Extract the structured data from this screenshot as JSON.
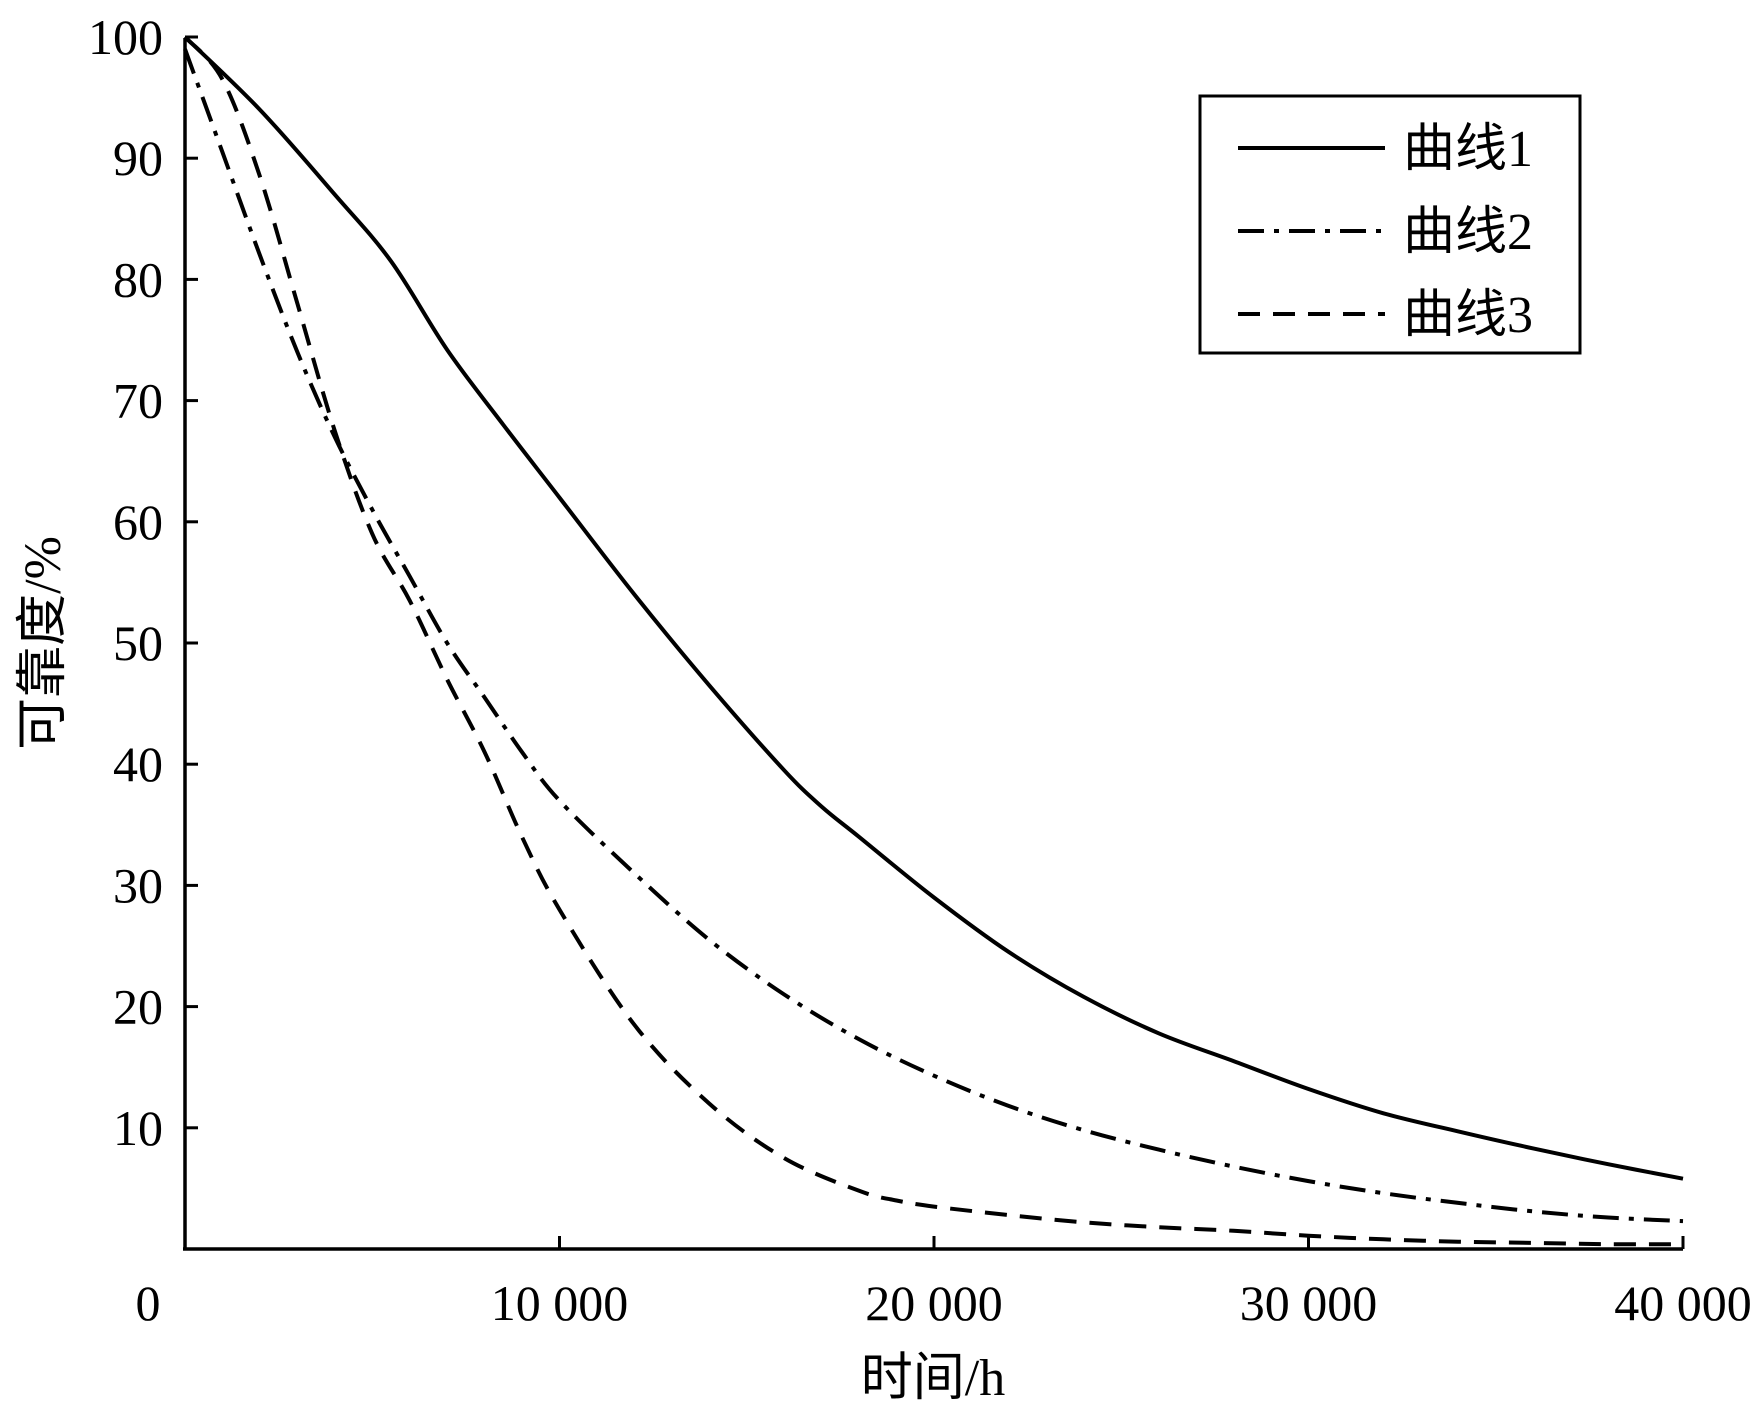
{
  "chart_data": {
    "type": "line",
    "title": "",
    "xlabel": "时间/h",
    "ylabel": "可靠度/%",
    "xlim": [
      0,
      40000
    ],
    "ylim": [
      0,
      100
    ],
    "x_ticks": [
      {
        "value": 0,
        "label": "0"
      },
      {
        "value": 10000,
        "label": "10 000"
      },
      {
        "value": 20000,
        "label": "20 000"
      },
      {
        "value": 30000,
        "label": "30 000"
      },
      {
        "value": 40000,
        "label": "40 000"
      }
    ],
    "y_ticks": [
      {
        "value": 10,
        "label": "10"
      },
      {
        "value": 20,
        "label": "20"
      },
      {
        "value": 30,
        "label": "30"
      },
      {
        "value": 40,
        "label": "40"
      },
      {
        "value": 50,
        "label": "50"
      },
      {
        "value": 60,
        "label": "60"
      },
      {
        "value": 70,
        "label": "70"
      },
      {
        "value": 80,
        "label": "80"
      },
      {
        "value": 90,
        "label": "90"
      },
      {
        "value": 100,
        "label": "100"
      }
    ],
    "grid": false,
    "legend_position": "top-right",
    "series": [
      {
        "name": "曲线1",
        "line_style": "solid",
        "color": "#000000",
        "x": [
          0,
          2000,
          4000,
          5500,
          7000,
          8500,
          10000,
          12000,
          14000,
          16000,
          17000,
          18000,
          20000,
          22000,
          24000,
          26000,
          28000,
          30000,
          32000,
          34000,
          36000,
          38000,
          40000
        ],
        "y": [
          100,
          94,
          87,
          81.5,
          74.2,
          68,
          62,
          54,
          46.5,
          39.5,
          36.5,
          34,
          29,
          24.5,
          20.8,
          17.8,
          15.5,
          13.2,
          11.2,
          9.7,
          8.3,
          7,
          5.8
        ]
      },
      {
        "name": "曲线2",
        "line_style": "dash-dot",
        "color": "#000000",
        "x": [
          0,
          1000,
          2000,
          3000,
          4000,
          5000,
          6000,
          7000,
          8000,
          9000,
          10000,
          12000,
          14000,
          16000,
          18000,
          20000,
          22000,
          24000,
          26000,
          28000,
          30000,
          32000,
          34000,
          36000,
          38000,
          40000
        ],
        "y": [
          99,
          90.5,
          82,
          74,
          67,
          61,
          55.5,
          50,
          45.5,
          41,
          37,
          31,
          25.5,
          21,
          17.3,
          14.3,
          11.8,
          9.8,
          8.2,
          6.8,
          5.6,
          4.6,
          3.8,
          3.1,
          2.6,
          2.3
        ]
      },
      {
        "name": "曲线3",
        "line_style": "dashed",
        "color": "#000000",
        "x": [
          0,
          1000,
          2000,
          3000,
          4000,
          5000,
          6000,
          7000,
          8000,
          9000,
          10000,
          12000,
          14000,
          16000,
          18000,
          19000,
          20000,
          22000,
          24000,
          26000,
          28000,
          30000,
          32000,
          34000,
          36000,
          38000,
          40000
        ],
        "y": [
          100,
          96.5,
          88.5,
          78,
          67.5,
          59,
          53.5,
          47,
          41,
          34,
          28,
          18.5,
          12,
          7.5,
          4.8,
          4,
          3.5,
          2.8,
          2.2,
          1.8,
          1.5,
          1.1,
          0.8,
          0.6,
          0.5,
          0.4,
          0.4
        ]
      }
    ]
  }
}
